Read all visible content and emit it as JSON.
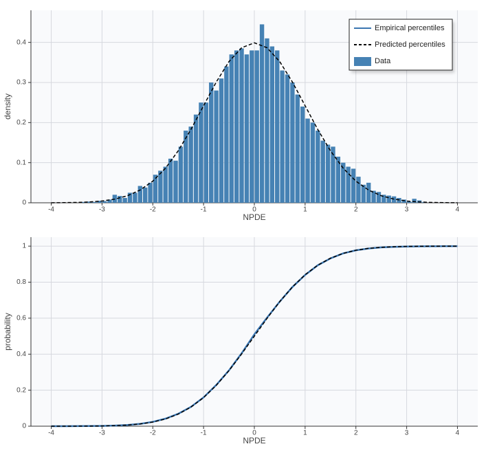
{
  "chart_data": [
    {
      "type": "histogram",
      "x_label": "NPDE",
      "y_label": "density",
      "name": "Data",
      "color": "#4682b4",
      "bins": [
        -3.4,
        -3.3,
        -3.2,
        -3.1,
        -3.0,
        -2.9,
        -2.8,
        -2.7,
        -2.6,
        -2.5,
        -2.4,
        -2.3,
        -2.2,
        -2.1,
        -2.0,
        -1.9,
        -1.8,
        -1.7,
        -1.6,
        -1.5,
        -1.4,
        -1.3,
        -1.2,
        -1.1,
        -1.0,
        -0.9,
        -0.8,
        -0.7,
        -0.6,
        -0.5,
        -0.4,
        -0.3,
        -0.2,
        -0.1,
        0,
        0.1,
        0.2,
        0.3,
        0.4,
        0.5,
        0.6,
        0.7,
        0.8,
        0.9,
        1.0,
        1.1,
        1.2,
        1.3,
        1.4,
        1.5,
        1.6,
        1.7,
        1.8,
        1.9,
        2.0,
        2.1,
        2.2,
        2.3,
        2.4,
        2.5,
        2.6,
        2.7,
        2.8,
        2.9,
        3.0,
        3.1,
        3.2,
        3.3,
        3.4
      ],
      "values": [
        0.002,
        0.003,
        0.002,
        0.005,
        0.004,
        0.008,
        0.02,
        0.017,
        0.012,
        0.025,
        0.025,
        0.042,
        0.038,
        0.05,
        0.07,
        0.08,
        0.09,
        0.11,
        0.105,
        0.14,
        0.18,
        0.19,
        0.22,
        0.25,
        0.25,
        0.3,
        0.28,
        0.31,
        0.34,
        0.37,
        0.38,
        0.385,
        0.37,
        0.38,
        0.38,
        0.445,
        0.41,
        0.39,
        0.38,
        0.33,
        0.32,
        0.3,
        0.27,
        0.24,
        0.21,
        0.2,
        0.18,
        0.155,
        0.145,
        0.14,
        0.115,
        0.1,
        0.09,
        0.085,
        0.065,
        0.045,
        0.05,
        0.03,
        0.027,
        0.02,
        0.018,
        0.016,
        0.012,
        0.008,
        0.003,
        0.01,
        0.006,
        0.002
      ],
      "density": {
        "name": "Predicted percentiles",
        "color": "#000000",
        "x": [
          -4,
          -3.75,
          -3.5,
          -3.25,
          -3,
          -2.75,
          -2.5,
          -2.25,
          -2,
          -1.75,
          -1.5,
          -1.25,
          -1,
          -0.75,
          -0.5,
          -0.25,
          0,
          0.25,
          0.5,
          0.75,
          1,
          1.25,
          1.5,
          1.75,
          2,
          2.25,
          2.5,
          2.75,
          3,
          3.25,
          3.5,
          3.75,
          4
        ],
        "values": [
          0.0001,
          0.0004,
          0.0009,
          0.002,
          0.0044,
          0.0091,
          0.0175,
          0.0317,
          0.054,
          0.0863,
          0.1295,
          0.1826,
          0.242,
          0.3011,
          0.3521,
          0.3867,
          0.3989,
          0.3867,
          0.3521,
          0.3011,
          0.242,
          0.1826,
          0.1295,
          0.0863,
          0.054,
          0.0317,
          0.0175,
          0.0091,
          0.0044,
          0.002,
          0.0009,
          0.0004,
          0.0001
        ]
      },
      "xlim": [
        -4.4,
        4.4
      ],
      "xticks": [
        -4,
        -3,
        -2,
        -1,
        0,
        1,
        2,
        3,
        4
      ],
      "ylim": [
        0,
        0.48
      ],
      "yticks": [
        0,
        0.1,
        0.2,
        0.3,
        0.4
      ],
      "grid": true,
      "legend": "upper right"
    },
    {
      "type": "line",
      "x_label": "NPDE",
      "y_label": "probability",
      "x": [
        -4,
        -3.75,
        -3.5,
        -3.25,
        -3,
        -2.75,
        -2.5,
        -2.25,
        -2,
        -1.75,
        -1.5,
        -1.25,
        -1,
        -0.75,
        -0.5,
        -0.25,
        0,
        0.25,
        0.5,
        0.75,
        1,
        1.25,
        1.5,
        1.75,
        2,
        2.25,
        2.5,
        2.75,
        3,
        3.25,
        3.5,
        3.75,
        4
      ],
      "series": [
        {
          "name": "Empirical percentiles",
          "color": "#3a75b0",
          "values": [
            0,
            0.0002,
            0.0004,
            0.0009,
            0.0016,
            0.0035,
            0.0068,
            0.013,
            0.024,
            0.042,
            0.069,
            0.107,
            0.16,
            0.229,
            0.31,
            0.405,
            0.51,
            0.603,
            0.692,
            0.773,
            0.84,
            0.894,
            0.932,
            0.96,
            0.977,
            0.987,
            0.993,
            0.996,
            0.998,
            0.999,
            0.9995,
            0.9998,
            1
          ]
        },
        {
          "name": "Predicted percentiles",
          "color": "#000000",
          "values": [
            3e-05,
            0.0001,
            0.0002,
            0.0006,
            0.0013,
            0.003,
            0.0062,
            0.0122,
            0.0228,
            0.0401,
            0.0668,
            0.1056,
            0.1587,
            0.2266,
            0.3085,
            0.4013,
            0.5,
            0.5987,
            0.6915,
            0.7734,
            0.8413,
            0.8944,
            0.9332,
            0.9599,
            0.9772,
            0.9878,
            0.9938,
            0.997,
            0.9987,
            0.9994,
            0.9998,
            0.9999,
            1
          ]
        }
      ],
      "xlim": [
        -4.4,
        4.4
      ],
      "xticks": [
        -4,
        -3,
        -2,
        -1,
        0,
        1,
        2,
        3,
        4
      ],
      "ylim": [
        0,
        1.05
      ],
      "yticks": [
        0,
        0.2,
        0.4,
        0.6,
        0.8,
        1
      ],
      "grid": true
    }
  ]
}
